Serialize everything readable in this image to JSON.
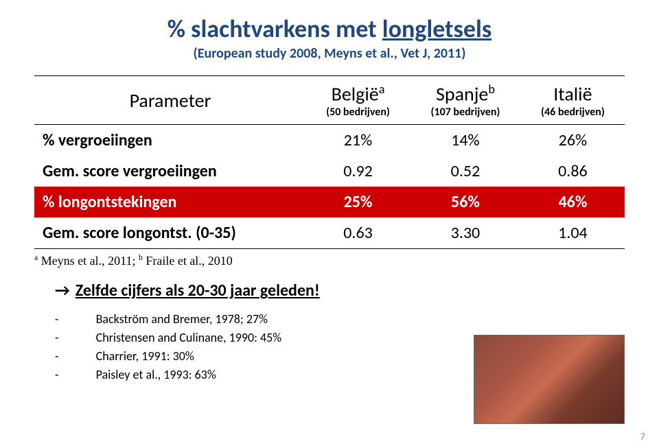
{
  "title_prefix": "% slachtvarkens met ",
  "title_underlined": "longletsels",
  "subtitle": "(European study 2008, Meyns et al., Vet J, 2011)",
  "table": {
    "header": {
      "param_label": "Parameter",
      "countries": [
        {
          "name": "België",
          "super": "a",
          "companies": "(50 bedrijven)"
        },
        {
          "name": "Spanje",
          "super": "b",
          "companies": "(107 bedrijven)"
        },
        {
          "name": "Italië",
          "super": "",
          "companies": "(46 bedrijven)"
        }
      ]
    },
    "rows": [
      {
        "label": "% vergroeiingen",
        "vals": [
          "21%",
          "14%",
          "26%"
        ],
        "highlight": false
      },
      {
        "label": "Gem. score vergroeiingen",
        "vals": [
          "0.92",
          "0.52",
          "0.86"
        ],
        "highlight": false
      },
      {
        "label": "% longontstekingen",
        "vals": [
          "25%",
          "56%",
          "46%"
        ],
        "highlight": true
      },
      {
        "label": "Gem. score longontst. (0-35)",
        "vals": [
          "0.63",
          "3.30",
          "1.04"
        ],
        "highlight": false
      }
    ]
  },
  "footnote_a_sup": "a",
  "footnote_a_text": " Meyns et al., 2011;   ",
  "footnote_b_sup": "b",
  "footnote_b_text": " Fraile et al., 2010",
  "arrow": "→",
  "arrow_underlined": "Zelfde cijfers als 20-30 jaar geleden!",
  "refs": [
    "Backström and Bremer, 1978; 27%",
    "Christensen and Culinane, 1990: 45%",
    "Charrier, 1991: 30%",
    "Paisley et al., 1993: 63%"
  ],
  "page_number": "7",
  "colors": {
    "title_color": "#1f497d",
    "highlight_bg": "#cc0000",
    "highlight_fg": "#ffffff",
    "text_color": "#000000",
    "bg": "#ffffff"
  }
}
